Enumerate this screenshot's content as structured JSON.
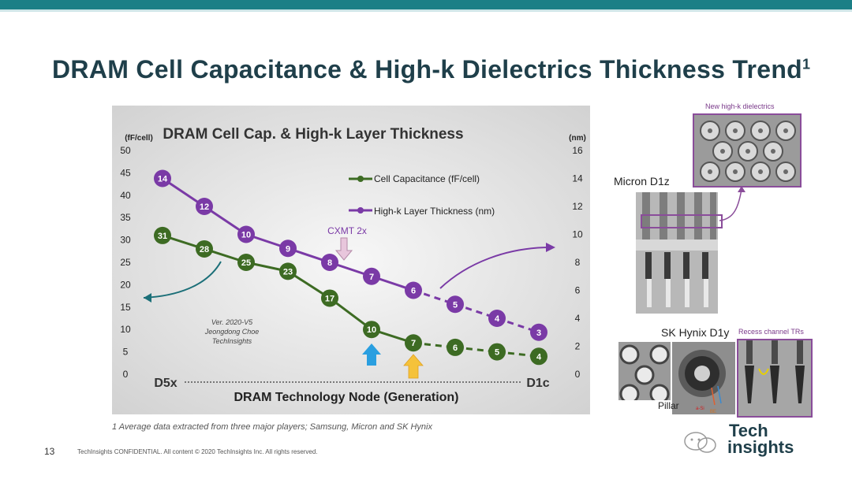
{
  "slide": {
    "title": "DRAM Cell Capacitance & High-k Dielectrics Thickness Trend",
    "title_sup": "1",
    "footnote": "1 Average data extracted from three major players; Samsung, Micron and SK Hynix",
    "page_number": "13",
    "confidential": "TechInsights CONFIDENTIAL. All content © 2020 TechInsights Inc. All rights reserved.",
    "logo_line1": "Tech",
    "logo_line2": "insights"
  },
  "side_images": {
    "new_highk_label": "New high-k dielectrics",
    "micron_label": "Micron D1z",
    "skhynix_label": "SK Hynix D1y",
    "recess_label": "Recess channel TRs",
    "pillar_label": "Pillar",
    "asi_label": "a-Si",
    "be_label": "BE"
  },
  "colors": {
    "capacitance": "#3d6b23",
    "highk": "#7a3aa6",
    "teal_bar": "#1b7f86",
    "title": "#1f3f4a"
  },
  "chart_data": {
    "type": "line",
    "title": "DRAM Cell Cap. & High-k Layer Thickness",
    "xlabel": "DRAM Technology Node (Generation)",
    "x_start_label": "D5x",
    "x_end_label": "D1c",
    "y_left_unit": "(fF/cell)",
    "y_right_unit": "(nm)",
    "y_left_ticks": [
      0,
      5,
      10,
      15,
      20,
      25,
      30,
      35,
      40,
      45,
      50
    ],
    "y_right_ticks": [
      0,
      2,
      4,
      6,
      8,
      10,
      12,
      14,
      16
    ],
    "ylim_left": [
      0,
      50
    ],
    "ylim_right": [
      0,
      16
    ],
    "x_positions": [
      1,
      2,
      3,
      4,
      5,
      6,
      7,
      8,
      9,
      10
    ],
    "series": [
      {
        "name": "Cell Capacitance (fF/cell)",
        "axis": "left",
        "color": "#3d6b23",
        "x": [
          1,
          2,
          3,
          4,
          5,
          6,
          7,
          8,
          9,
          10
        ],
        "values": [
          31,
          28,
          25,
          23,
          17,
          10,
          7,
          6,
          5,
          4
        ],
        "solid_until_index": 6
      },
      {
        "name": "High-k Layer Thickness (nm)",
        "axis": "right",
        "color": "#7a3aa6",
        "x": [
          1,
          2,
          3,
          4,
          5,
          6,
          7,
          8,
          9,
          10
        ],
        "values": [
          14,
          12,
          10,
          9,
          8,
          7,
          6,
          5,
          4,
          3
        ],
        "solid_until_index": 6
      }
    ],
    "annotations": {
      "cxmt": "CXMT 2x",
      "version": "Ver. 2020-V5",
      "author": "Jeongdong Choe",
      "company": "TechInsights"
    }
  }
}
